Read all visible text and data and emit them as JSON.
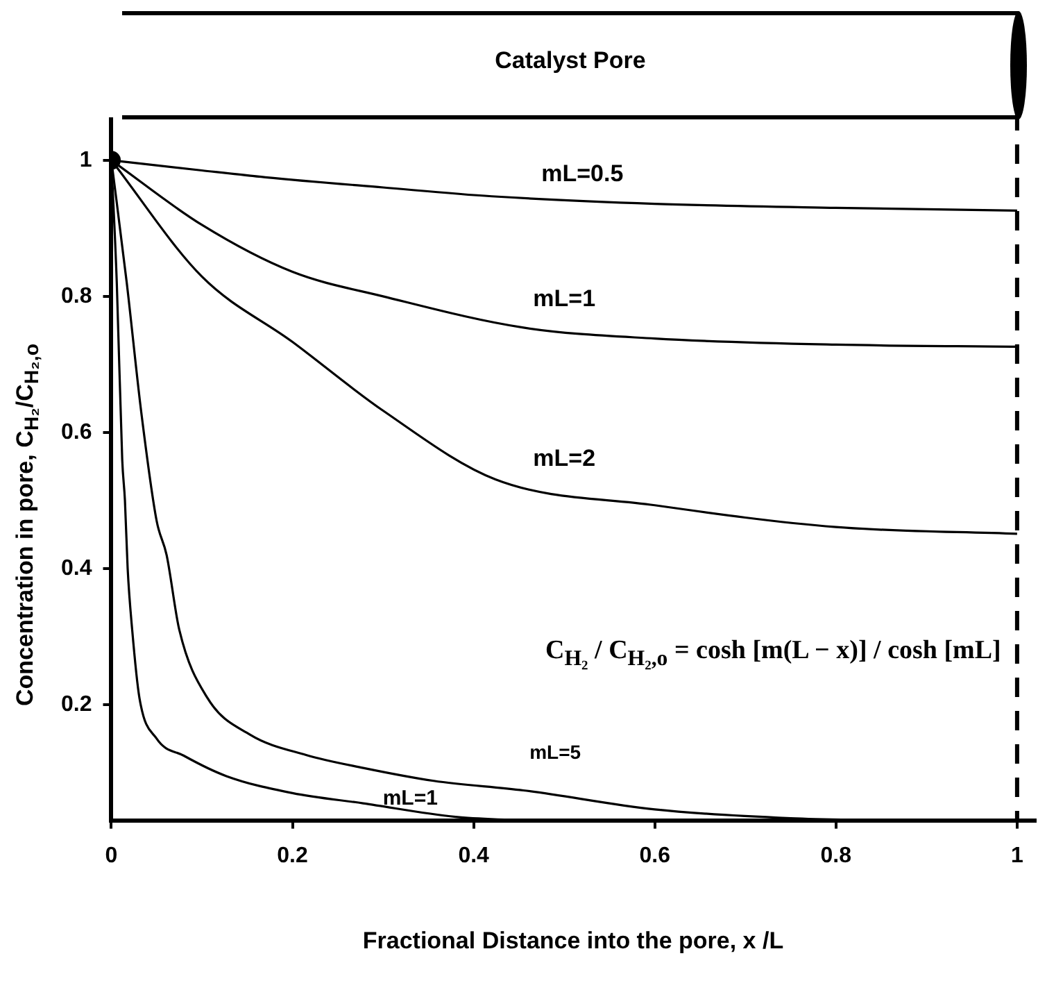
{
  "chart_data": {
    "type": "line",
    "title": "Catalyst Pore",
    "xlabel": "Fractional Distance into the pore, x /L",
    "ylabel": "Concentration in pore, C$_{H₂}$/C$_{H₂,o}$",
    "xlim": [
      0,
      1.02
    ],
    "ylim": [
      0.03,
      1.06
    ],
    "xticks": [
      0,
      0.2,
      0.4,
      0.6,
      0.8,
      1
    ],
    "yticks": [
      0.2,
      0.4,
      0.6,
      0.8,
      1
    ],
    "grid": false,
    "legend": false,
    "marker": "none",
    "line_style": "solid",
    "annotations": [
      "C$_{H₂}$ / C$_{H₂,o}$ = cosh [m(L − x)] / cosh [mL]"
    ],
    "ref_lines": [
      {
        "axis": "x",
        "value": 1,
        "color": "#000000",
        "line_style": "dashed"
      }
    ],
    "series": [
      {
        "name": "mL=0.5",
        "color": "#000000",
        "x": [
          0,
          0.1,
          0.17,
          0.3,
          0.42,
          0.6,
          0.8,
          1
        ],
        "values": [
          1,
          0.985,
          0.975,
          0.96,
          0.947,
          0.936,
          0.93,
          0.926
        ]
      },
      {
        "name": "mL=1",
        "color": "#000000",
        "x": [
          0,
          0.1,
          0.2,
          0.3,
          0.455,
          0.6,
          0.8,
          1
        ],
        "values": [
          1,
          0.905,
          0.836,
          0.8,
          0.754,
          0.738,
          0.729,
          0.726
        ]
      },
      {
        "name": "mL=2",
        "color": "#000000",
        "x": [
          0,
          0.1,
          0.2,
          0.3,
          0.424,
          0.6,
          0.8,
          1
        ],
        "values": [
          1,
          0.829,
          0.733,
          0.632,
          0.531,
          0.493,
          0.461,
          0.451
        ]
      },
      {
        "name": "mL=5",
        "color": "#000000",
        "x": [
          0,
          0.017,
          0.033,
          0.05,
          0.061,
          0.075,
          0.106,
          0.153,
          0.215,
          0.278,
          0.356,
          0.455,
          0.6,
          0.75,
          0.85
        ],
        "values": [
          1,
          0.82,
          0.63,
          0.47,
          0.42,
          0.31,
          0.21,
          0.156,
          0.126,
          0.107,
          0.088,
          0.074,
          0.046,
          0.033,
          0.03
        ]
      },
      {
        "name": "mL=1",
        "color": "#000000",
        "x": [
          0,
          0.006,
          0.012,
          0.015,
          0.018,
          0.023,
          0.031,
          0.05,
          0.08,
          0.127,
          0.2,
          0.278,
          0.38,
          0.45
        ],
        "values": [
          1,
          0.82,
          0.56,
          0.5,
          0.4,
          0.31,
          0.21,
          0.15,
          0.125,
          0.095,
          0.07,
          0.055,
          0.035,
          0.03
        ]
      },
      {
        "type": "scatter",
        "marker": "circle",
        "color": "#000000",
        "x": [
          0
        ],
        "values": [
          1
        ]
      }
    ]
  }
}
